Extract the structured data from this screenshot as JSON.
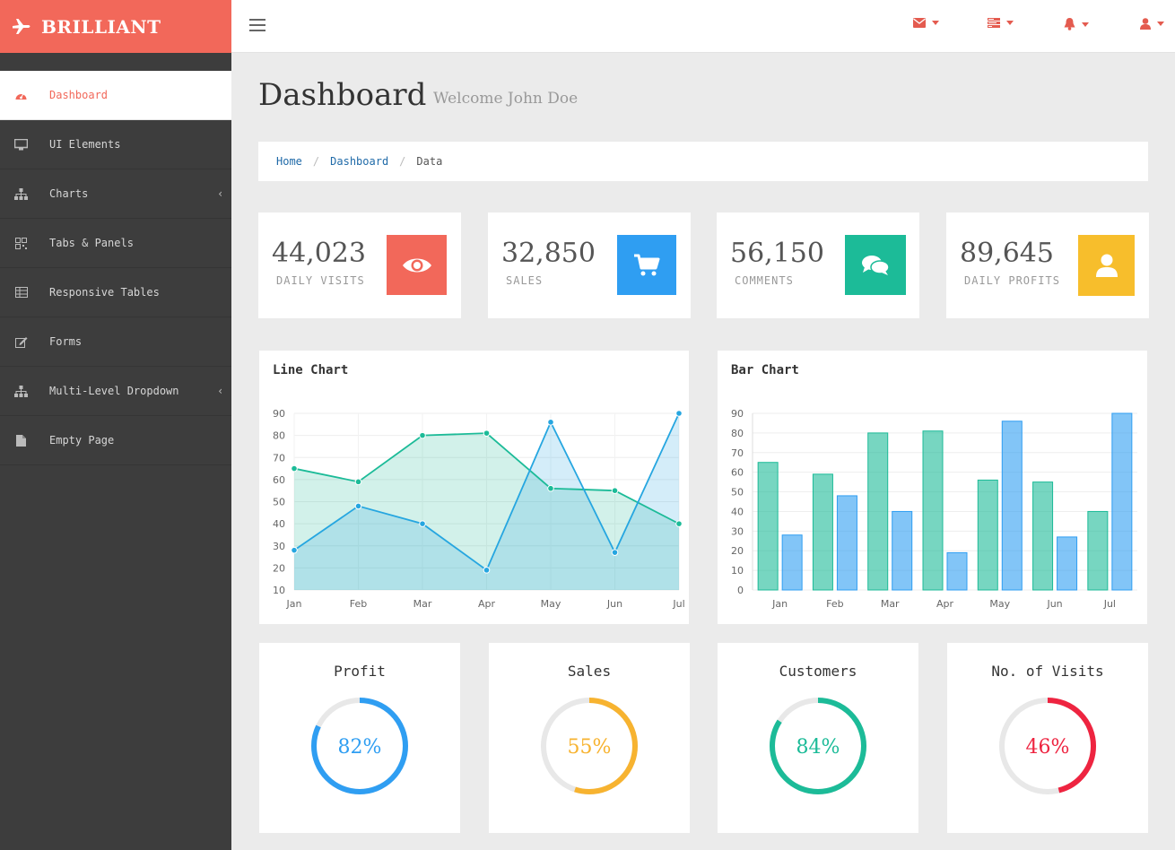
{
  "brand": {
    "name": "BRILLIANT"
  },
  "sidebar": {
    "items": [
      {
        "label": "Dashboard",
        "icon": "dashboard-icon",
        "active": true
      },
      {
        "label": "UI Elements",
        "icon": "desktop-icon"
      },
      {
        "label": "Charts",
        "icon": "sitemap-icon",
        "has_submenu": true
      },
      {
        "label": "Tabs & Panels",
        "icon": "qrcode-icon"
      },
      {
        "label": "Responsive Tables",
        "icon": "table-icon"
      },
      {
        "label": "Forms",
        "icon": "edit-icon"
      },
      {
        "label": "Multi-Level Dropdown",
        "icon": "sitemap-icon",
        "has_submenu": true
      },
      {
        "label": "Empty Page",
        "icon": "file-icon"
      }
    ]
  },
  "topbar": {
    "icons": [
      "envelope-icon",
      "tasks-icon",
      "bell-icon",
      "user-icon"
    ],
    "accent": "#e45b4f"
  },
  "header": {
    "title": "Dashboard",
    "subtitle": "Welcome John Doe"
  },
  "breadcrumb": {
    "items": [
      "Home",
      "Dashboard",
      "Data"
    ]
  },
  "stats": [
    {
      "value": "44,023",
      "label": "DAILY VISITS",
      "icon": "eye-icon",
      "color": "#f2685a"
    },
    {
      "value": "32,850",
      "label": "SALES",
      "icon": "shopping-cart-icon",
      "color": "#2f9ef2"
    },
    {
      "value": "56,150",
      "label": "COMMENTS",
      "icon": "comments-icon",
      "color": "#1cbb98"
    },
    {
      "value": "89,645",
      "label": "DAILY PROFITS",
      "icon": "user-icon",
      "color": "#f7be2c"
    }
  ],
  "chart_data": [
    {
      "type": "area",
      "title": "Line Chart",
      "categories": [
        "Jan",
        "Feb",
        "Mar",
        "Apr",
        "May",
        "Jun",
        "Jul"
      ],
      "series": [
        {
          "values": [
            65,
            59,
            80,
            81,
            56,
            55,
            40
          ],
          "color": "#1cbb98"
        },
        {
          "values": [
            28,
            48,
            40,
            19,
            86,
            27,
            90
          ],
          "color": "#26a6e0"
        }
      ],
      "ylim": [
        10,
        90
      ],
      "yticks": [
        10,
        20,
        30,
        40,
        50,
        60,
        70,
        80,
        90
      ],
      "grid": true
    },
    {
      "type": "bar",
      "title": "Bar Chart",
      "categories": [
        "Jan",
        "Feb",
        "Mar",
        "Apr",
        "May",
        "Jun",
        "Jul"
      ],
      "series": [
        {
          "values": [
            65,
            59,
            80,
            81,
            56,
            55,
            40
          ],
          "color": "#1cbb98"
        },
        {
          "values": [
            28,
            48,
            40,
            19,
            86,
            27,
            90
          ],
          "color": "#2f9ef2"
        }
      ],
      "ylim": [
        0,
        90
      ],
      "yticks": [
        0,
        10,
        20,
        30,
        40,
        50,
        60,
        70,
        80,
        90
      ],
      "grid": true
    }
  ],
  "donuts": [
    {
      "title": "Profit",
      "percent": 82,
      "label": "82%",
      "color": "#2f9ef2"
    },
    {
      "title": "Sales",
      "percent": 55,
      "label": "55%",
      "color": "#f7b330"
    },
    {
      "title": "Customers",
      "percent": 84,
      "label": "84%",
      "color": "#1cbb98"
    },
    {
      "title": "No. of Visits",
      "percent": 46,
      "label": "46%",
      "color": "#ee2440"
    }
  ]
}
